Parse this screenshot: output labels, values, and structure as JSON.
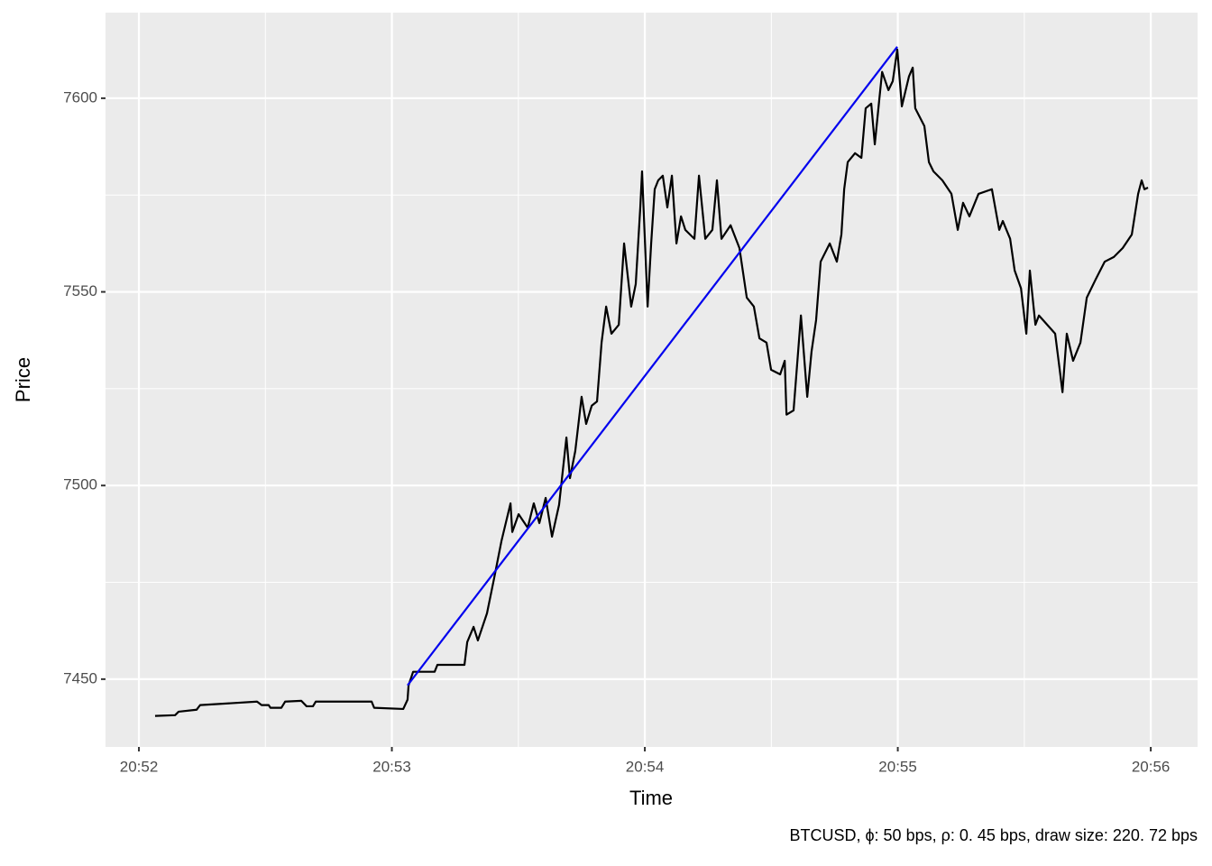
{
  "chart_data": {
    "type": "line",
    "xlabel": "Time",
    "ylabel": "Price",
    "caption": "BTCUSD, ϕ: 50 bps, ρ: 0. 45 bps, draw size: 220. 72 bps",
    "xlim": [
      1251.868,
      1256.185
    ],
    "ylim": [
      7432.5,
      7622.1
    ],
    "xticks": [
      {
        "value": 1252,
        "label": "20:52"
      },
      {
        "value": 1253,
        "label": "20:53"
      },
      {
        "value": 1254,
        "label": "20:54"
      },
      {
        "value": 1255,
        "label": "20:55"
      },
      {
        "value": 1256,
        "label": "20:56"
      }
    ],
    "yticks": [
      7450,
      7500,
      7550,
      7600
    ],
    "xticks_minor": [
      1252.5,
      1253.5,
      1254.5,
      1255.5
    ],
    "yticks_minor": [
      7475,
      7525,
      7575
    ],
    "grid": true,
    "series": [
      {
        "color": "#000000",
        "x": [
          1252.064,
          1252.143,
          1252.157,
          1252.228,
          1252.242,
          1252.467,
          1252.485,
          1252.513,
          1252.52,
          1252.563,
          1252.578,
          1252.642,
          1252.663,
          1252.688,
          1252.699,
          1252.92,
          1252.93,
          1253.045,
          1253.062,
          1253.066,
          1253.084,
          1253.169,
          1253.18,
          1253.287,
          1253.298,
          1253.323,
          1253.34,
          1253.376,
          1253.405,
          1253.433,
          1253.469,
          1253.476,
          1253.501,
          1253.537,
          1253.561,
          1253.583,
          1253.608,
          1253.633,
          1253.661,
          1253.69,
          1253.704,
          1253.725,
          1253.75,
          1253.768,
          1253.79,
          1253.811,
          1253.829,
          1253.847,
          1253.868,
          1253.897,
          1253.918,
          1253.946,
          1253.964,
          1253.982,
          1253.989,
          1254.011,
          1254.025,
          1254.039,
          1254.053,
          1254.071,
          1254.089,
          1254.107,
          1254.125,
          1254.143,
          1254.16,
          1254.196,
          1254.214,
          1254.239,
          1254.267,
          1254.285,
          1254.303,
          1254.339,
          1254.374,
          1254.403,
          1254.431,
          1254.453,
          1254.481,
          1254.499,
          1254.535,
          1254.553,
          1254.56,
          1254.588,
          1254.617,
          1254.642,
          1254.659,
          1254.677,
          1254.695,
          1254.731,
          1254.759,
          1254.777,
          1254.788,
          1254.802,
          1254.831,
          1254.856,
          1254.873,
          1254.895,
          1254.909,
          1254.927,
          1254.938,
          1254.963,
          1254.98,
          1254.998,
          1255.016,
          1255.044,
          1255.059,
          1255.069,
          1255.105,
          1255.123,
          1255.141,
          1255.176,
          1255.212,
          1255.237,
          1255.258,
          1255.283,
          1255.319,
          1255.372,
          1255.401,
          1255.415,
          1255.444,
          1255.462,
          1255.487,
          1255.508,
          1255.522,
          1255.544,
          1255.558,
          1255.622,
          1255.64,
          1255.651,
          1255.668,
          1255.693,
          1255.722,
          1255.747,
          1255.782,
          1255.818,
          1255.854,
          1255.889,
          1255.925,
          1255.95,
          1255.964,
          1255.975,
          1255.989
        ],
        "values": [
          7440.5,
          7440.7,
          7441.6,
          7442.1,
          7443.3,
          7444.2,
          7443.3,
          7443.3,
          7442.6,
          7442.6,
          7444.2,
          7444.4,
          7443.0,
          7443.0,
          7444.2,
          7444.2,
          7442.6,
          7442.3,
          7444.7,
          7448.4,
          7451.9,
          7451.9,
          7453.7,
          7453.7,
          7459.6,
          7463.5,
          7460.0,
          7467.0,
          7476.3,
          7485.6,
          7495.4,
          7488.0,
          7492.6,
          7489.1,
          7495.4,
          7490.3,
          7496.8,
          7486.8,
          7495.0,
          7512.4,
          7501.9,
          7508.9,
          7522.9,
          7515.9,
          7520.6,
          7521.7,
          7536.9,
          7546.2,
          7539.2,
          7541.5,
          7562.5,
          7546.2,
          7552.0,
          7571.8,
          7581.1,
          7546.2,
          7562.5,
          7576.5,
          7578.8,
          7580.0,
          7571.8,
          7580.0,
          7562.5,
          7569.5,
          7566.0,
          7563.7,
          7580.0,
          7563.7,
          7566.0,
          7578.8,
          7563.7,
          7567.2,
          7561.3,
          7548.5,
          7546.2,
          7538.0,
          7536.9,
          7529.9,
          7528.7,
          7532.2,
          7518.3,
          7519.4,
          7543.9,
          7522.9,
          7534.6,
          7542.7,
          7557.8,
          7562.5,
          7557.8,
          7564.8,
          7576.5,
          7583.5,
          7585.8,
          7584.6,
          7597.4,
          7598.6,
          7588.1,
          7599.8,
          7606.8,
          7602.1,
          7604.4,
          7612.6,
          7597.9,
          7605.6,
          7607.9,
          7597.4,
          7592.8,
          7583.5,
          7581.1,
          7578.8,
          7575.3,
          7566.0,
          7573.0,
          7569.5,
          7575.3,
          7576.5,
          7566.0,
          7568.3,
          7563.7,
          7555.5,
          7550.9,
          7539.2,
          7555.5,
          7541.5,
          7543.9,
          7539.2,
          7529.9,
          7524.1,
          7539.2,
          7532.2,
          7536.9,
          7548.5,
          7553.2,
          7557.8,
          7559.0,
          7561.3,
          7564.8,
          7575.3,
          7578.8,
          7576.5,
          7576.9
        ]
      },
      {
        "color": "#0000ee",
        "x": [
          1253.062,
          1254.998
        ],
        "values": [
          7448.4,
          7613.3
        ]
      }
    ]
  }
}
